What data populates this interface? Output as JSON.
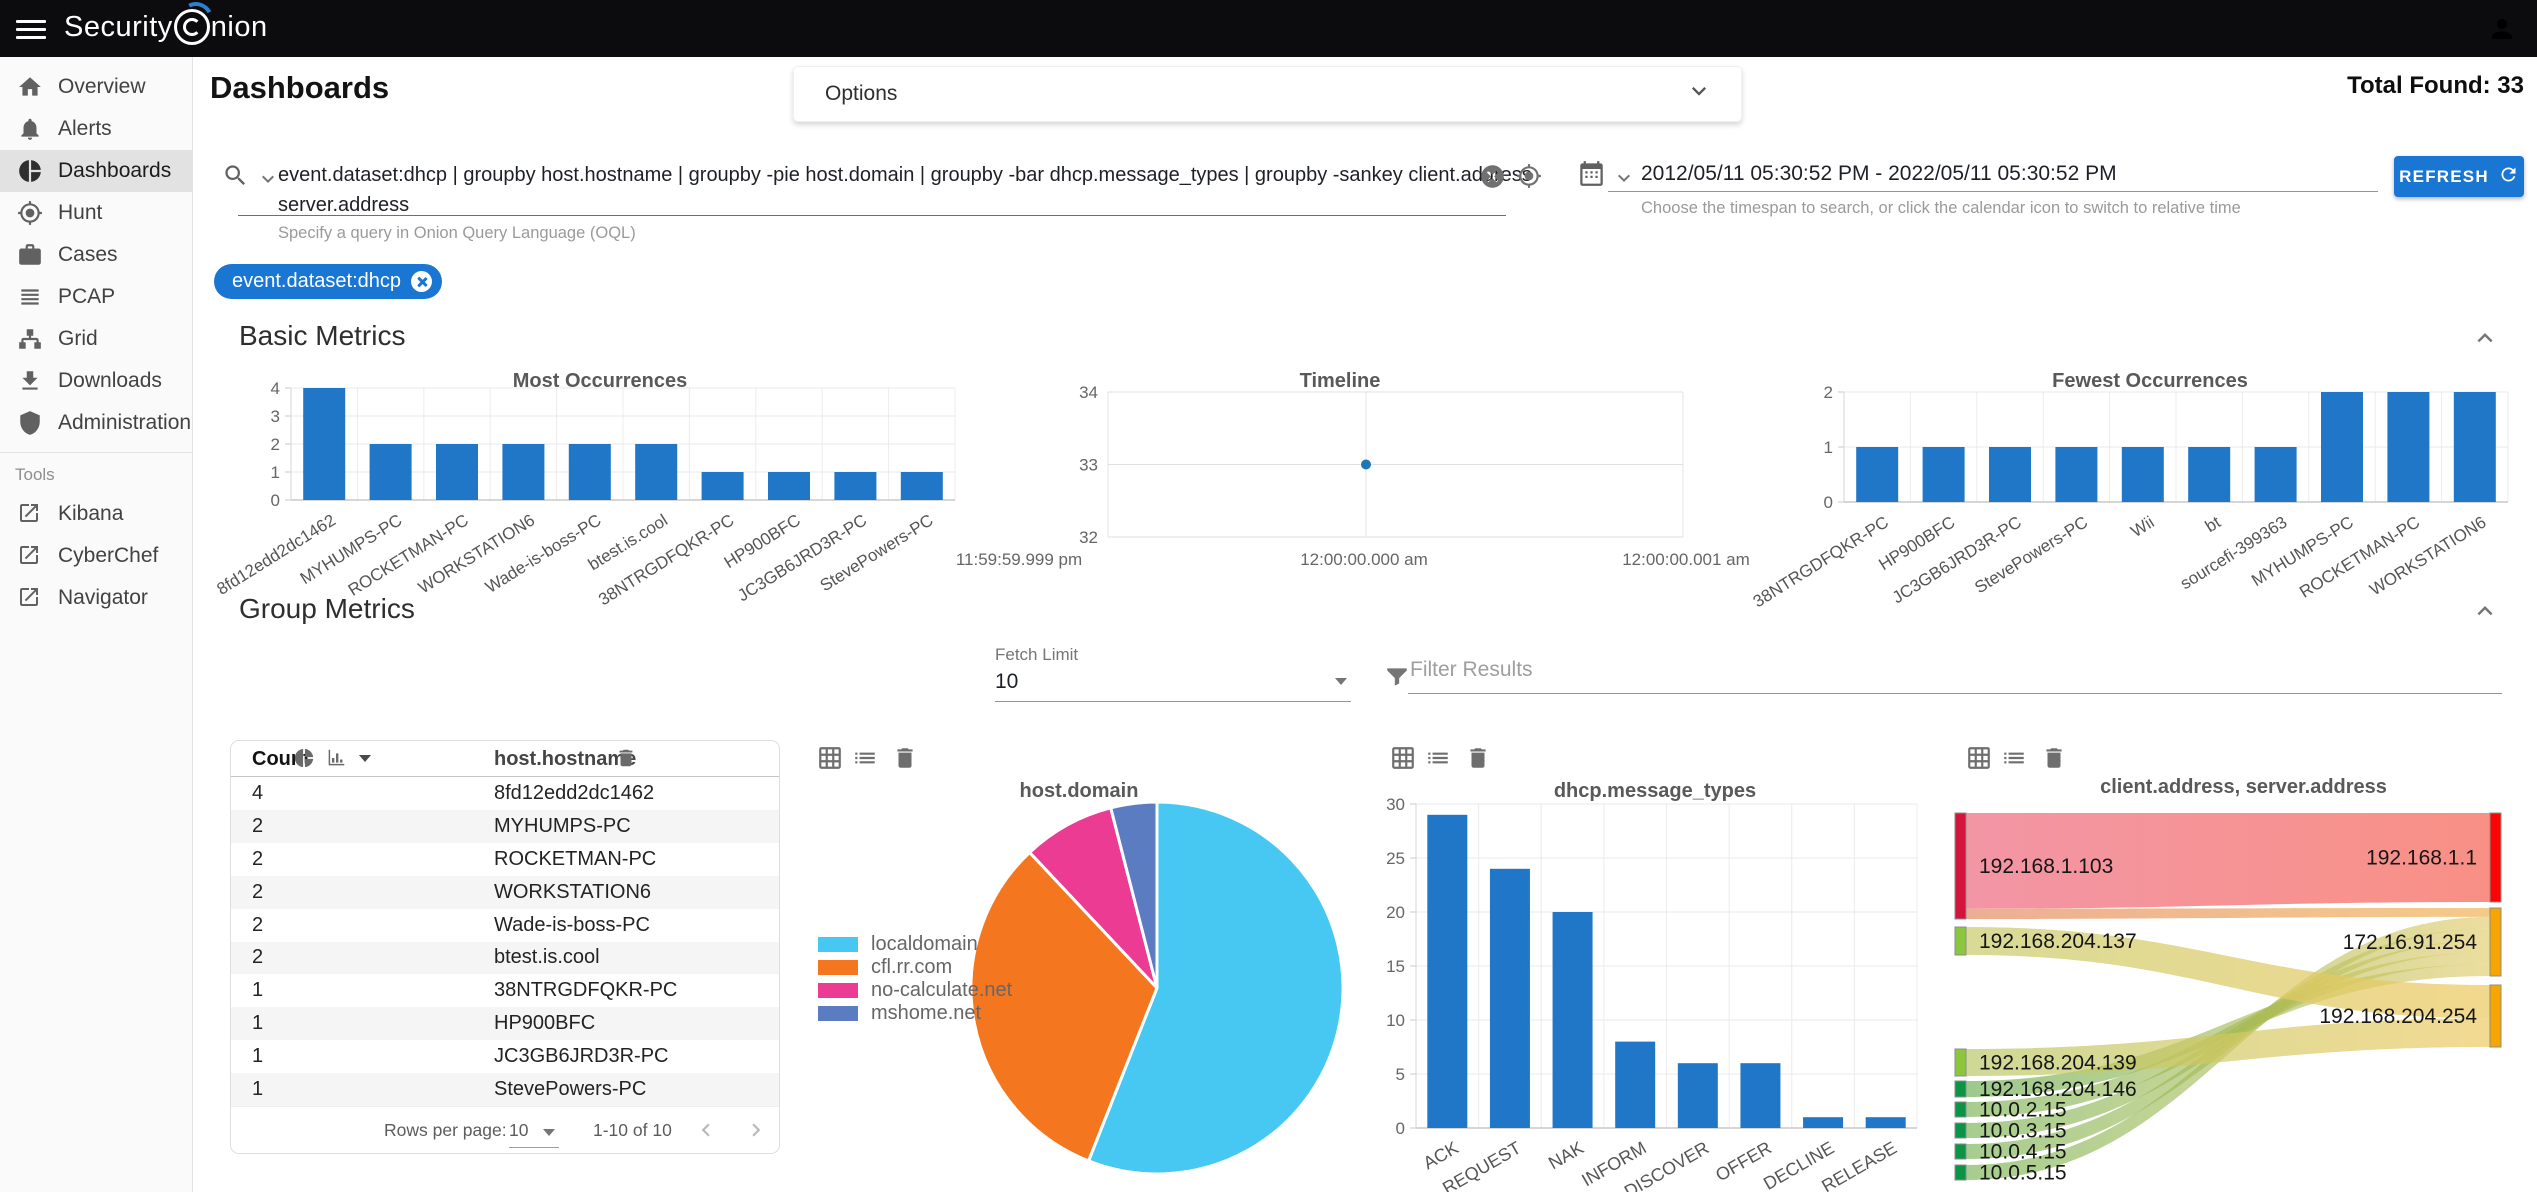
{
  "topbar": {
    "logo_left": "Security",
    "logo_right": "nion"
  },
  "sidebar": {
    "items": [
      {
        "label": "Overview",
        "icon": "home-icon",
        "selected": false
      },
      {
        "label": "Alerts",
        "icon": "bell-icon",
        "selected": false
      },
      {
        "label": "Dashboards",
        "icon": "pie-chart-icon",
        "selected": true
      },
      {
        "label": "Hunt",
        "icon": "crosshair-icon",
        "selected": false
      },
      {
        "label": "Cases",
        "icon": "briefcase-icon",
        "selected": false
      },
      {
        "label": "PCAP",
        "icon": "lines-icon",
        "selected": false
      },
      {
        "label": "Grid",
        "icon": "sitemap-icon",
        "selected": false
      },
      {
        "label": "Downloads",
        "icon": "download-icon",
        "selected": false
      },
      {
        "label": "Administration",
        "icon": "shield-icon",
        "selected": false
      }
    ],
    "tools_label": "Tools",
    "tools": [
      {
        "label": "Kibana",
        "icon": "external-link-icon"
      },
      {
        "label": "CyberChef",
        "icon": "external-link-icon"
      },
      {
        "label": "Navigator",
        "icon": "external-link-icon"
      }
    ]
  },
  "header": {
    "page_title": "Dashboards",
    "options_label": "Options",
    "total_found": "Total Found: 33"
  },
  "search": {
    "query": "event.dataset:dhcp | groupby host.hostname | groupby -pie host.domain | groupby -bar dhcp.message_types | groupby -sankey client.address server.address",
    "hint": "Specify a query in Onion Query Language (OQL)"
  },
  "timespan": {
    "value": "2012/05/11 05:30:52 PM - 2022/05/11 05:30:52 PM",
    "hint": "Choose the timespan to search, or click the calendar icon to switch to relative time",
    "refresh_label": "REFRESH"
  },
  "filter_chip": {
    "label": "event.dataset:dhcp"
  },
  "sections": {
    "basic_title": "Basic Metrics",
    "group_title": "Group Metrics"
  },
  "group_controls": {
    "fetch_limit_label": "Fetch Limit",
    "fetch_limit_value": "10",
    "filter_placeholder": "Filter Results"
  },
  "table": {
    "count_header": "Count",
    "field_header": "host.hostname",
    "rows": [
      {
        "count": "4",
        "hostname": "8fd12edd2dc1462"
      },
      {
        "count": "2",
        "hostname": "MYHUMPS-PC"
      },
      {
        "count": "2",
        "hostname": "ROCKETMAN-PC"
      },
      {
        "count": "2",
        "hostname": "WORKSTATION6"
      },
      {
        "count": "2",
        "hostname": "Wade-is-boss-PC"
      },
      {
        "count": "2",
        "hostname": "btest.is.cool"
      },
      {
        "count": "1",
        "hostname": "38NTRGDFQKR-PC"
      },
      {
        "count": "1",
        "hostname": "HP900BFC"
      },
      {
        "count": "1",
        "hostname": "JC3GB6JRD3R-PC"
      },
      {
        "count": "1",
        "hostname": "StevePowers-PC"
      }
    ],
    "footer": {
      "rows_per_page_label": "Rows per page:",
      "rows_per_page_value": "10",
      "range_label": "1-10 of 10"
    }
  },
  "chart_data": [
    {
      "id": "most-occurrences",
      "type": "bar",
      "title": "Most Occurrences",
      "categories": [
        "8fd12edd2dc1462",
        "MYHUMPS-PC",
        "ROCKETMAN-PC",
        "WORKSTATION6",
        "Wade-is-boss-PC",
        "btest.is.cool",
        "38NTRGDFQKR-PC",
        "HP900BFC",
        "JC3GB6JRD3R-PC",
        "StevePowers-PC"
      ],
      "values": [
        4,
        2,
        2,
        2,
        2,
        2,
        1,
        1,
        1,
        1
      ],
      "yticks": [
        0,
        1,
        2,
        3,
        4
      ],
      "ylim": [
        0,
        4
      ],
      "bar_color": "#2077c7",
      "grid": true
    },
    {
      "id": "timeline",
      "type": "scatter",
      "title": "Timeline",
      "x_tick_labels": [
        "11:59:59.999 pm",
        "12:00:00.000 am",
        "12:00:00.001 am"
      ],
      "yticks": [
        32,
        33,
        34
      ],
      "ylim": [
        32,
        34
      ],
      "points": [
        {
          "x_label": "12:00:00.000 am",
          "y": 33
        }
      ],
      "point_color": "#1f77b4",
      "grid": true
    },
    {
      "id": "fewest-occurrences",
      "type": "bar",
      "title": "Fewest Occurrences",
      "categories": [
        "38NTRGDFQKR-PC",
        "HP900BFC",
        "JC3GB6JRD3R-PC",
        "StevePowers-PC",
        "Wii",
        "bt",
        "sourcefi-399363",
        "MYHUMPS-PC",
        "ROCKETMAN-PC",
        "WORKSTATION6"
      ],
      "values": [
        1,
        1,
        1,
        1,
        1,
        1,
        1,
        2,
        2,
        2
      ],
      "yticks": [
        0,
        1,
        2
      ],
      "ylim": [
        0,
        2
      ],
      "bar_color": "#2077c7",
      "grid": true
    },
    {
      "id": "host-domain",
      "type": "pie",
      "title": "host.domain",
      "slices": [
        {
          "label": "localdomain",
          "value": 14,
          "color": "#46c8f2"
        },
        {
          "label": "cfl.rr.com",
          "value": 8,
          "color": "#f4771f"
        },
        {
          "label": "no-calculate.net",
          "value": 2,
          "color": "#ec3b93"
        },
        {
          "label": "mshome.net",
          "value": 1,
          "color": "#5b7cc1"
        }
      ],
      "legend_position": "left"
    },
    {
      "id": "message-types",
      "type": "bar",
      "title": "dhcp.message_types",
      "categories": [
        "ACK",
        "REQUEST",
        "NAK",
        "INFORM",
        "DISCOVER",
        "OFFER",
        "DECLINE",
        "RELEASE"
      ],
      "values": [
        29,
        24,
        20,
        8,
        6,
        6,
        1,
        1
      ],
      "yticks": [
        0,
        5,
        10,
        15,
        20,
        25,
        30
      ],
      "ylim": [
        0,
        30
      ],
      "bar_color": "#2077c7",
      "grid": true
    },
    {
      "id": "client-server-sankey",
      "type": "sankey",
      "title": "client.address, server.address",
      "nodes": [
        {
          "id": "192.168.1.103",
          "side": "left",
          "color": "#d4143c"
        },
        {
          "id": "192.168.204.137",
          "side": "left",
          "color": "#8cc63f"
        },
        {
          "id": "192.168.204.139",
          "side": "left",
          "color": "#8cc63f"
        },
        {
          "id": "192.168.204.146",
          "side": "left",
          "color": "#0b9444"
        },
        {
          "id": "10.0.2.15",
          "side": "left",
          "color": "#0b9444"
        },
        {
          "id": "10.0.3.15",
          "side": "left",
          "color": "#0b9444"
        },
        {
          "id": "10.0.4.15",
          "side": "left",
          "color": "#0b9444"
        },
        {
          "id": "10.0.5.15",
          "side": "left",
          "color": "#0b9444"
        },
        {
          "id": "192.168.1.1",
          "side": "right",
          "color": "#fb0404"
        },
        {
          "id": "172.16.91.254",
          "side": "right",
          "color": "#f7a600"
        },
        {
          "id": "192.168.204.254",
          "side": "right",
          "color": "#f7a600"
        }
      ],
      "links": [
        {
          "source": "192.168.1.103",
          "target": "192.168.1.1",
          "value": 14,
          "color_from": "#f18a9b",
          "color_to": "#f88478",
          "opacity": 0.9
        },
        {
          "source": "192.168.1.103",
          "target": "172.16.91.254",
          "value": 1.5,
          "color_from": "#e89a78",
          "color_to": "#f2bd6b",
          "opacity": 0.8
        },
        {
          "source": "10.0.5.15",
          "target": "172.16.91.254",
          "value": 2,
          "color_from": "#6fae4a",
          "color_to": "#e0c963",
          "opacity": 0.62
        },
        {
          "source": "10.0.4.15",
          "target": "172.16.91.254",
          "value": 2,
          "color_from": "#6fae4a",
          "color_to": "#e0c963",
          "opacity": 0.62
        },
        {
          "source": "10.0.3.15",
          "target": "172.16.91.254",
          "value": 2,
          "color_from": "#6fae4a",
          "color_to": "#e0c963",
          "opacity": 0.62
        },
        {
          "source": "10.0.2.15",
          "target": "172.16.91.254",
          "value": 2,
          "color_from": "#6fae4a",
          "color_to": "#e0c963",
          "opacity": 0.62
        },
        {
          "source": "192.168.204.146",
          "target": "172.16.91.254",
          "value": 2,
          "color_from": "#5fa845",
          "color_to": "#e0c963",
          "opacity": 0.62
        },
        {
          "source": "192.168.204.137",
          "target": "192.168.204.254",
          "value": 3.5,
          "color_from": "#c9cc6e",
          "color_to": "#edc95f",
          "opacity": 0.72
        },
        {
          "source": "192.168.204.139",
          "target": "192.168.204.254",
          "value": 3,
          "color_from": "#b7c763",
          "color_to": "#edc95f",
          "opacity": 0.68
        }
      ]
    }
  ]
}
